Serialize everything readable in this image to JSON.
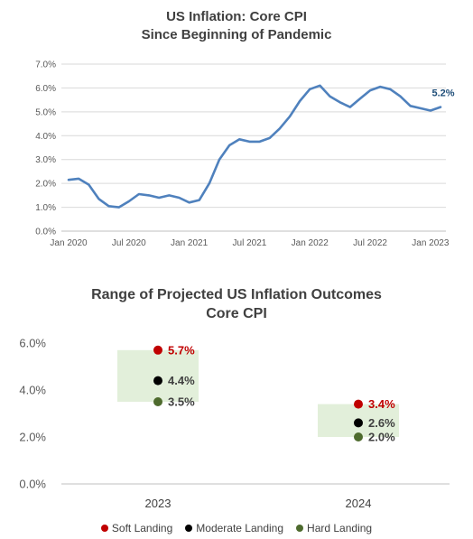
{
  "chart_data": [
    {
      "type": "line",
      "title": "US Inflation:  Core CPI",
      "subtitle": "Since Beginning of Pandemic",
      "x_tick_labels": [
        "Jan 2020",
        "Jul 2020",
        "Jan 2021",
        "Jul 2021",
        "Jan 2022",
        "Jul 2022",
        "Jan 2023"
      ],
      "y_tick_labels": [
        "0.0%",
        "1.0%",
        "2.0%",
        "3.0%",
        "4.0%",
        "5.0%",
        "6.0%",
        "7.0%"
      ],
      "ylim": [
        0,
        7
      ],
      "grid": true,
      "line_color": "#4f81bd",
      "x_start": "2020-01",
      "x_end": "2023-02",
      "x": [
        "2020-01",
        "2020-02",
        "2020-03",
        "2020-04",
        "2020-05",
        "2020-06",
        "2020-07",
        "2020-08",
        "2020-09",
        "2020-10",
        "2020-11",
        "2020-12",
        "2021-01",
        "2021-02",
        "2021-03",
        "2021-04",
        "2021-05",
        "2021-06",
        "2021-07",
        "2021-08",
        "2021-09",
        "2021-10",
        "2021-11",
        "2021-12",
        "2022-01",
        "2022-02",
        "2022-03",
        "2022-04",
        "2022-05",
        "2022-06",
        "2022-07",
        "2022-08",
        "2022-09",
        "2022-10",
        "2022-11",
        "2022-12",
        "2023-01",
        "2023-02"
      ],
      "values": [
        2.15,
        2.2,
        1.95,
        1.35,
        1.05,
        1.0,
        1.25,
        1.55,
        1.5,
        1.4,
        1.5,
        1.4,
        1.2,
        1.3,
        2.0,
        3.0,
        3.6,
        3.85,
        3.75,
        3.75,
        3.9,
        4.3,
        4.8,
        5.45,
        5.95,
        6.1,
        5.65,
        5.4,
        5.2,
        5.55,
        5.9,
        6.05,
        5.95,
        5.65,
        5.25,
        5.15,
        5.05,
        5.2
      ],
      "end_label": "5.2%",
      "end_label_color": "#1f4e79"
    },
    {
      "type": "scatter",
      "title": "Range of Projected US Inflation Outcomes",
      "subtitle": "Core CPI",
      "categories": [
        "2023",
        "2024"
      ],
      "y_tick_labels": [
        "0.0%",
        "2.0%",
        "4.0%",
        "6.0%"
      ],
      "ylim": [
        0,
        6
      ],
      "grid": false,
      "range_color": "#e2efda",
      "legend_position": "bottom",
      "series": [
        {
          "name": "Soft Landing",
          "color": "#c00000",
          "label_color": "#c00000",
          "values": [
            5.7,
            3.4
          ],
          "labels": [
            "5.7%",
            "3.4%"
          ]
        },
        {
          "name": "Moderate Landing",
          "color": "#000000",
          "label_color": "#404040",
          "values": [
            4.4,
            2.6
          ],
          "labels": [
            "4.4%",
            "2.6%"
          ]
        },
        {
          "name": "Hard Landing",
          "color": "#4e6b2e",
          "label_color": "#404040",
          "values": [
            3.5,
            2.0
          ],
          "labels": [
            "3.5%",
            "2.0%"
          ]
        }
      ]
    }
  ]
}
